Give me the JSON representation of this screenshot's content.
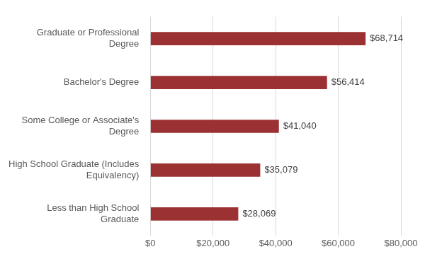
{
  "chart_data": {
    "type": "bar",
    "orientation": "horizontal",
    "categories": [
      "Graduate or Professional\nDegree",
      "Bachelor's Degree",
      "Some College or Associate's\nDegree",
      "High School Graduate (Includes\nEquivalency)",
      "Less than High School\nGraduate"
    ],
    "values": [
      68714,
      56414,
      41040,
      35079,
      28069
    ],
    "value_labels": [
      "$68,714",
      "$56,414",
      "$41,040",
      "$35,079",
      "$28,069"
    ],
    "data_labels": true,
    "color": "#9b3133",
    "xlim": [
      0,
      80000
    ],
    "xticks": [
      {
        "value": 0,
        "label": "$0"
      },
      {
        "value": 20000,
        "label": "$20,000"
      },
      {
        "value": 40000,
        "label": "$40,000"
      },
      {
        "value": 60000,
        "label": "$60,000"
      },
      {
        "value": 80000,
        "label": "$80,000"
      }
    ],
    "grid": true
  }
}
